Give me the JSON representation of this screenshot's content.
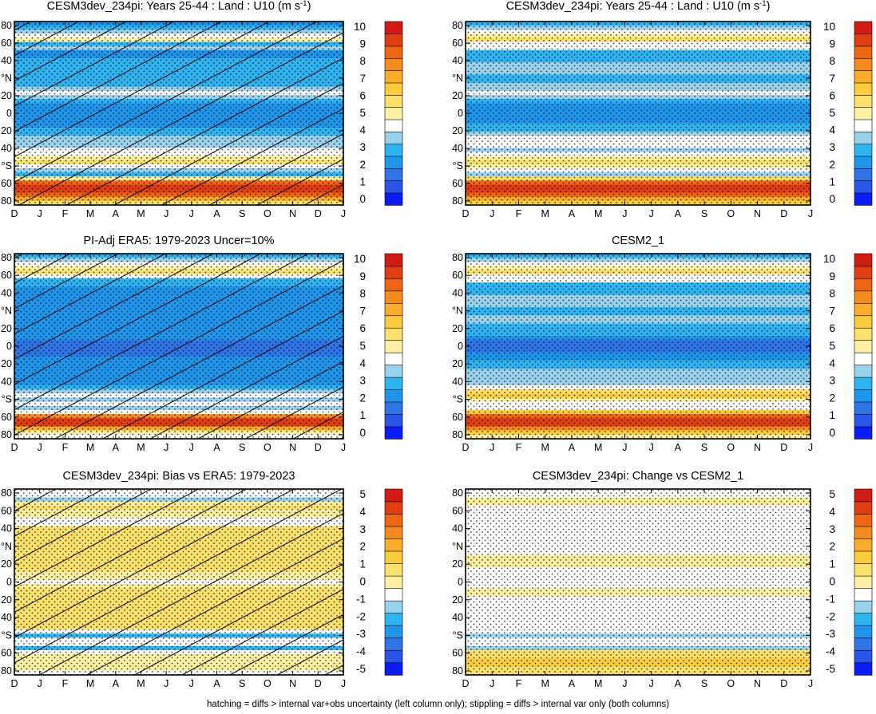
{
  "footer": "hatching = diffs > internal var+obs uncertainty (left column only); stippling = diffs > internal var only (both columns)",
  "palettes": {
    "abs": [
      "#0a1cf5",
      "#2a55e6",
      "#2f75e8",
      "#1e96ec",
      "#2fb4f2",
      "#9ad2ee",
      "#ffffff",
      "#fdf0a2",
      "#fbe06c",
      "#fbcc3c",
      "#f9ad2a",
      "#f58b1e",
      "#ee6512",
      "#e03e10",
      "#d01c12"
    ],
    "diff": [
      "#0a1cf5",
      "#2a55e6",
      "#2f75e8",
      "#1e96ec",
      "#2fb4f2",
      "#9ad2ee",
      "#ffffff",
      "#fdf0a2",
      "#fbe06c",
      "#fbcc3c",
      "#f9ad2a",
      "#f58b1e",
      "#ee6512",
      "#e03e10",
      "#d01c12"
    ]
  },
  "colorbars": {
    "abs": {
      "labels": [
        "0",
        "1",
        "2",
        "3",
        "4",
        "5",
        "6",
        "7",
        "8",
        "9",
        "10"
      ]
    },
    "diff": {
      "labels": [
        "-5",
        "-4",
        "-3",
        "-2",
        "-1",
        "0",
        "1",
        "2",
        "3",
        "4",
        "5"
      ]
    }
  },
  "axes": {
    "months": [
      "D",
      "J",
      "F",
      "M",
      "A",
      "M",
      "J",
      "J",
      "A",
      "S",
      "O",
      "N",
      "D",
      "J"
    ],
    "lat_ticks": [
      "80",
      "60",
      "40",
      "°N",
      "20",
      "0",
      "20",
      "40",
      "°S",
      "60",
      "80"
    ]
  },
  "chart_data": [
    {
      "type": "heatmap",
      "title": "CESM3dev_234pi: Years 25-44 : Land : U10 (m s",
      "title_sup": "-1",
      "title_suffix": ")",
      "scale": "abs",
      "hatch": true,
      "stipple": true,
      "lat_values": [
        88,
        84,
        80,
        76,
        72,
        68,
        64,
        60,
        56,
        52,
        48,
        44,
        40,
        36,
        32,
        28,
        24,
        20,
        16,
        12,
        8,
        4,
        0,
        -4,
        -8,
        -12,
        -16,
        -20,
        -24,
        -28,
        -32,
        -36,
        -40,
        -44,
        -48,
        -52,
        -56,
        -60,
        -64,
        -68,
        -72,
        -76,
        -80,
        -84,
        -88
      ],
      "lat_profile_levels": [
        3,
        4,
        5,
        6,
        7,
        4,
        5,
        3,
        3,
        4,
        4,
        4,
        4,
        4,
        4,
        4,
        5,
        6,
        5,
        4,
        3,
        3,
        3,
        3,
        3,
        3,
        4,
        4,
        5,
        5,
        5,
        6,
        6,
        7,
        8,
        6,
        5,
        4,
        7,
        12,
        13,
        13,
        12,
        10,
        8
      ]
    },
    {
      "type": "heatmap",
      "title": "CESM3dev_234pi: Years 25-44 : Land : U10 (m s",
      "title_sup": "-1",
      "title_suffix": ")",
      "scale": "abs",
      "hatch": false,
      "stipple": true,
      "lat_values": [
        88,
        84,
        80,
        76,
        72,
        68,
        64,
        60,
        56,
        52,
        48,
        44,
        40,
        36,
        32,
        28,
        24,
        20,
        16,
        12,
        8,
        4,
        0,
        -4,
        -8,
        -12,
        -16,
        -20,
        -24,
        -28,
        -32,
        -36,
        -40,
        -44,
        -48,
        -52,
        -56,
        -60,
        -64,
        -68,
        -72,
        -76,
        -80,
        -84,
        -88
      ],
      "lat_profile_levels": [
        4,
        5,
        6,
        7,
        8,
        6,
        6,
        4,
        4,
        4,
        5,
        5,
        5,
        4,
        4,
        5,
        5,
        6,
        5,
        4,
        3,
        3,
        3,
        3,
        3,
        4,
        4,
        5,
        6,
        6,
        6,
        5,
        6,
        7,
        8,
        7,
        6,
        5,
        8,
        12,
        13,
        13,
        12,
        10,
        9
      ]
    },
    {
      "type": "heatmap",
      "title": "PI-Adj ERA5: 1979-2023 Uncer=10%",
      "scale": "abs",
      "hatch": true,
      "stipple": true,
      "lat_values": [
        88,
        84,
        80,
        76,
        72,
        68,
        64,
        60,
        56,
        52,
        48,
        44,
        40,
        36,
        32,
        28,
        24,
        20,
        16,
        12,
        8,
        4,
        0,
        -4,
        -8,
        -12,
        -16,
        -20,
        -24,
        -28,
        -32,
        -36,
        -40,
        -44,
        -48,
        -52,
        -56,
        -60,
        -64,
        -68,
        -72,
        -76,
        -80,
        -84,
        -88
      ],
      "lat_profile_levels": [
        4,
        5,
        6,
        7,
        8,
        6,
        4,
        4,
        3,
        3,
        3,
        3,
        3,
        3,
        3,
        3,
        3,
        3,
        3,
        3,
        3,
        2,
        2,
        2,
        2,
        3,
        3,
        3,
        3,
        3,
        3,
        3,
        4,
        5,
        6,
        5,
        6,
        5,
        6,
        11,
        13,
        13,
        10,
        7,
        6
      ]
    },
    {
      "type": "heatmap",
      "title": "CESM2_1",
      "scale": "abs",
      "hatch": false,
      "stipple": true,
      "lat_values": [
        88,
        84,
        80,
        76,
        72,
        68,
        64,
        60,
        56,
        52,
        48,
        44,
        40,
        36,
        32,
        28,
        24,
        20,
        16,
        12,
        8,
        4,
        0,
        -4,
        -8,
        -12,
        -16,
        -20,
        -24,
        -28,
        -32,
        -36,
        -40,
        -44,
        -48,
        -52,
        -56,
        -60,
        -64,
        -68,
        -72,
        -76,
        -80,
        -84,
        -88
      ],
      "lat_profile_levels": [
        4,
        5,
        6,
        7,
        8,
        6,
        6,
        4,
        4,
        4,
        5,
        5,
        5,
        4,
        4,
        5,
        5,
        4,
        4,
        4,
        3,
        2,
        2,
        2,
        3,
        3,
        4,
        4,
        5,
        5,
        5,
        5,
        6,
        8,
        9,
        7,
        6,
        6,
        9,
        12,
        13,
        13,
        11,
        9,
        7
      ]
    },
    {
      "type": "heatmap",
      "title": "CESM3dev_234pi: Bias vs ERA5: 1979-2023",
      "scale": "diff",
      "hatch": true,
      "stipple": true,
      "lat_values": [
        88,
        84,
        80,
        76,
        72,
        68,
        64,
        60,
        56,
        52,
        48,
        44,
        40,
        36,
        32,
        28,
        24,
        20,
        16,
        12,
        8,
        4,
        0,
        -4,
        -8,
        -12,
        -16,
        -20,
        -24,
        -28,
        -32,
        -36,
        -40,
        -44,
        -48,
        -52,
        -56,
        -60,
        -64,
        -68,
        -72,
        -76,
        -80,
        -84,
        -88
      ],
      "lat_profile_levels": [
        6,
        6,
        5,
        7,
        8,
        7,
        7,
        6,
        6,
        8,
        8,
        8,
        8,
        8,
        8,
        8,
        8,
        8,
        8,
        8,
        7,
        7,
        6,
        7,
        8,
        8,
        8,
        8,
        8,
        8,
        8,
        8,
        8,
        8,
        6,
        4,
        6,
        6,
        4,
        6,
        7,
        7,
        7,
        7,
        6
      ]
    },
    {
      "type": "heatmap",
      "title": "CESM3dev_234pi: Change vs CESM2_1",
      "scale": "diff",
      "hatch": false,
      "stipple": true,
      "lat_values": [
        88,
        84,
        80,
        76,
        72,
        68,
        64,
        60,
        56,
        52,
        48,
        44,
        40,
        36,
        32,
        28,
        24,
        20,
        16,
        12,
        8,
        4,
        0,
        -4,
        -8,
        -12,
        -16,
        -20,
        -24,
        -28,
        -32,
        -36,
        -40,
        -44,
        -48,
        -52,
        -56,
        -60,
        -64,
        -68,
        -72,
        -76,
        -80,
        -84,
        -88
      ],
      "lat_profile_levels": [
        6,
        6,
        7,
        7,
        6,
        6,
        6,
        6,
        6,
        6,
        6,
        6,
        6,
        6,
        6,
        6,
        7,
        7,
        7,
        6,
        6,
        6,
        6,
        6,
        7,
        7,
        6,
        6,
        6,
        6,
        6,
        6,
        6,
        6,
        6,
        5,
        6,
        6,
        5,
        8,
        8,
        9,
        9,
        8,
        8
      ]
    }
  ]
}
